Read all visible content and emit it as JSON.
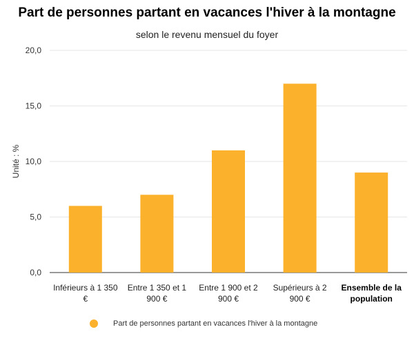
{
  "chart_data": {
    "type": "bar",
    "title": "Part de personnes partant en vacances l'hiver à la montagne",
    "subtitle": "selon le revenu mensuel du foyer",
    "ylabel": "Unité : %",
    "ylim": [
      0,
      20
    ],
    "yticks": [
      "0,0",
      "5,0",
      "10,0",
      "15,0",
      "20,0"
    ],
    "categories": [
      [
        "Inférieurs à 1 350",
        "€"
      ],
      [
        "Entre 1 350 et 1",
        "900 €"
      ],
      [
        "Entre 1 900 et 2",
        "900 €"
      ],
      [
        "Supérieurs à 2",
        "900 €"
      ],
      [
        "Ensemble de la",
        "population"
      ]
    ],
    "bold_category": 4,
    "series": [
      {
        "name": "Part de personnes partant en vacances l'hiver à la montagne",
        "values": [
          6,
          7,
          11,
          17,
          9
        ],
        "color": "#FBB12B"
      }
    ],
    "grid": true,
    "legend": "bottom"
  }
}
